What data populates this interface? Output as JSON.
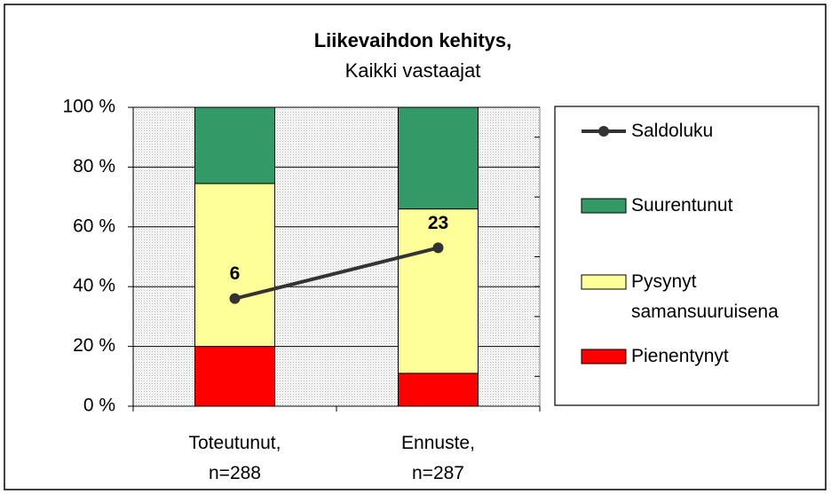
{
  "chart_data": {
    "type": "bar",
    "stacked": true,
    "title": "Liikevaihdon kehitys,",
    "subtitle": "Kaikki vastaajat",
    "categories": [
      "Toteutunut,\nn=288",
      "Ennuste,\nn=287"
    ],
    "series": [
      {
        "name": "Pienentynyt",
        "color": "#ff0000",
        "values": [
          20,
          11
        ]
      },
      {
        "name": "Pysynyt\nsamansuuruisena",
        "color": "#ffff99",
        "values": [
          54.5,
          55
        ]
      },
      {
        "name": "Suurentunut",
        "color": "#339966",
        "values": [
          25.5,
          34
        ]
      },
      {
        "name": "Saldoluku",
        "type": "line",
        "axis": "y2",
        "color": "#333333",
        "values": [
          6,
          23
        ]
      }
    ],
    "ylim": [
      0,
      100
    ],
    "yticks": [
      {
        "value": 0,
        "label": "0 %"
      },
      {
        "value": 20,
        "label": "20 %"
      },
      {
        "value": 40,
        "label": "40 %"
      },
      {
        "value": 60,
        "label": "60 %"
      },
      {
        "value": 80,
        "label": "80 %"
      },
      {
        "value": 100,
        "label": "100 %"
      }
    ],
    "y2lim": [
      -30,
      70
    ],
    "grid": true,
    "legend": "right"
  }
}
